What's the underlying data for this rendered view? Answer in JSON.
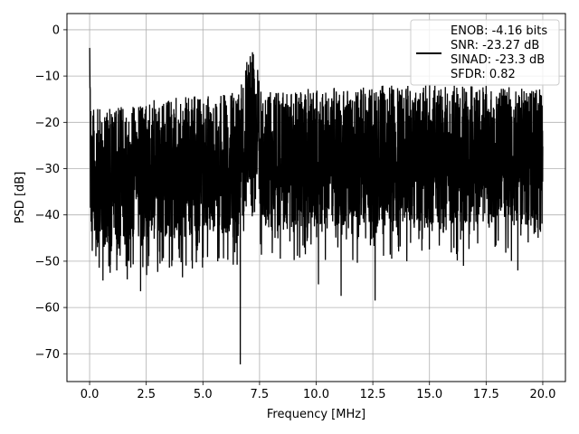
{
  "chart_data": {
    "type": "line",
    "xlabel": "Frequency [MHz]",
    "ylabel": "PSD [dB]",
    "xlim": [
      -1.0,
      21.0
    ],
    "ylim": [
      -76.0,
      3.5
    ],
    "xticks": [
      0.0,
      2.5,
      5.0,
      7.5,
      10.0,
      12.5,
      15.0,
      17.5,
      20.0
    ],
    "xtick_labels": [
      "0.0",
      "2.5",
      "5.0",
      "7.5",
      "10.0",
      "12.5",
      "15.0",
      "17.5",
      "20.0"
    ],
    "yticks": [
      0,
      -10,
      -20,
      -30,
      -40,
      -50,
      -60,
      -70
    ],
    "ytick_labels": [
      "0",
      "−10",
      "−20",
      "−30",
      "−40",
      "−50",
      "−60",
      "−70"
    ],
    "grid": true,
    "legend_position": "top-right",
    "series": [
      {
        "name": "ENOB: -4.16 bits\nSNR: -23.27 dB\nSINAD: -23.3 dB\nSFDR: 0.82",
        "color": "#000000",
        "x": [
          0.0,
          0.02,
          0.05,
          0.1,
          0.2,
          0.5,
          1.0,
          1.5,
          2.0,
          2.25,
          2.5,
          3.0,
          3.5,
          4.0,
          4.5,
          5.0,
          5.5,
          6.0,
          6.5,
          6.6,
          6.7,
          7.0,
          7.2,
          7.3,
          7.4,
          7.6,
          8.0,
          9.0,
          10.0,
          11.0,
          11.1,
          12.0,
          12.6,
          13.0,
          14.0,
          15.0,
          16.0,
          17.0,
          18.0,
          19.0,
          20.0
        ],
        "noise_ceiling": [
          0.0,
          -8.0,
          -12.0,
          -16.0,
          -17.0,
          -17.0,
          -17.0,
          -16.5,
          -16.0,
          -16.0,
          -15.5,
          -15.0,
          -15.0,
          -14.5,
          -14.5,
          -14.0,
          -14.0,
          -14.0,
          -13.0,
          -12.0,
          -9.0,
          -4.0,
          -2.5,
          -2.5,
          -4.0,
          -12.0,
          -13.5,
          -13.0,
          -12.5,
          -12.5,
          -12.5,
          -12.5,
          -12.0,
          -12.0,
          -12.0,
          -12.0,
          -12.0,
          -12.0,
          -12.0,
          -12.5,
          -12.5
        ],
        "notable_minima": [
          {
            "x": 1.2,
            "y": -52.0
          },
          {
            "x": 2.25,
            "y": -56.5
          },
          {
            "x": 4.1,
            "y": -53.5
          },
          {
            "x": 6.65,
            "y": -72.3
          },
          {
            "x": 10.1,
            "y": -55.0
          },
          {
            "x": 11.1,
            "y": -57.5
          },
          {
            "x": 12.6,
            "y": -58.5
          },
          {
            "x": 14.0,
            "y": -50.0
          },
          {
            "x": 16.5,
            "y": -51.0
          },
          {
            "x": 18.9,
            "y": -52.0
          }
        ]
      }
    ]
  }
}
